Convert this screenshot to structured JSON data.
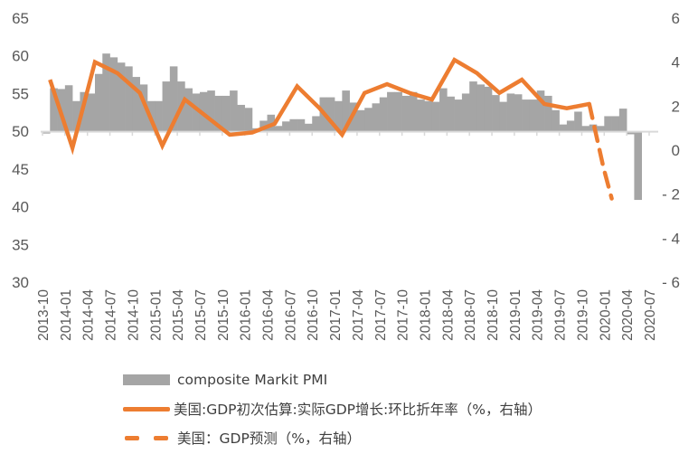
{
  "chart_data": {
    "type": "bar+line",
    "title": "",
    "xlabel": "",
    "ylabel_left": "composite Markit PMI",
    "ylabel_right": "%",
    "left_axis": {
      "min": 30,
      "max": 65,
      "ticks": [
        "65",
        "60",
        "55",
        "50",
        "45",
        "40",
        "35",
        "30"
      ],
      "crosses_at": 50
    },
    "right_axis": {
      "min": -6,
      "max": 6,
      "ticks": [
        "6",
        "4",
        "2",
        "0",
        "-2",
        "-4",
        "-6"
      ]
    },
    "x_tick_labels": [
      "2013-10",
      "2014-01",
      "2014-04",
      "2014-07",
      "2014-10",
      "2015-01",
      "2015-04",
      "2015-07",
      "2015-10",
      "2016-01",
      "2016-04",
      "2016-07",
      "2016-10",
      "2017-01",
      "2017-04",
      "2017-07",
      "2017-10",
      "2018-01",
      "2018-04",
      "2018-07",
      "2018-10",
      "2019-01",
      "2019-04",
      "2019-07",
      "2019-10",
      "2020-01",
      "2020-04",
      "2020-07"
    ],
    "grid": false,
    "legend_position": "bottom",
    "series": [
      {
        "name": "composite Markit PMI",
        "type": "bar",
        "axis": "left",
        "color": "#a5a5a5",
        "start_month": "2013-10",
        "values": [
          49.7,
          55.7,
          55.6,
          56.1,
          54.0,
          55.2,
          55.0,
          57.6,
          60.3,
          59.8,
          59.1,
          58.6,
          57.2,
          56.2,
          54.0,
          54.0,
          56.6,
          58.6,
          56.6,
          55.7,
          55.0,
          55.2,
          55.4,
          54.7,
          54.7,
          55.4,
          53.5,
          53.1,
          50.4,
          51.4,
          52.2,
          50.7,
          51.3,
          51.6,
          51.6,
          51.0,
          52.0,
          54.5,
          54.5,
          54.0,
          55.4,
          53.8,
          52.8,
          53.1,
          53.7,
          54.5,
          55.2,
          55.2,
          54.7,
          55.2,
          54.2,
          54.0,
          53.9,
          55.7,
          54.6,
          54.2,
          55.0,
          56.6,
          56.2,
          55.9,
          54.8,
          53.9,
          55.0,
          54.9,
          54.2,
          54.2,
          55.4,
          54.7,
          52.8,
          50.9,
          51.4,
          52.6,
          50.7,
          50.9,
          50.7,
          52.0,
          52.0,
          53.0,
          49.6,
          40.9
        ]
      },
      {
        "name": "美国:GDP初次估算:实际GDP增长:环比折年率（%，右轴）",
        "type": "line",
        "axis": "right",
        "color": "#ed7d31",
        "x": [
          "2013-Q4",
          "2014-Q1",
          "2014-Q2",
          "2014-Q3",
          "2014-Q4",
          "2015-Q1",
          "2015-Q2",
          "2015-Q3",
          "2015-Q4",
          "2016-Q1",
          "2016-Q2",
          "2016-Q3",
          "2016-Q4",
          "2017-Q1",
          "2017-Q2",
          "2017-Q3",
          "2017-Q4",
          "2018-Q1",
          "2018-Q2",
          "2018-Q3",
          "2018-Q4",
          "2019-Q1",
          "2019-Q2",
          "2019-Q3",
          "2019-Q4"
        ],
        "values": [
          3.2,
          0.1,
          4.0,
          3.5,
          2.6,
          0.2,
          2.3,
          1.5,
          0.7,
          0.8,
          1.2,
          2.9,
          1.9,
          0.7,
          2.6,
          3.0,
          2.6,
          2.3,
          4.1,
          3.5,
          2.6,
          3.2,
          2.1,
          1.9,
          2.1
        ]
      },
      {
        "name": "美国：GDP预测（%，右轴）",
        "type": "line-dashed",
        "axis": "right",
        "color": "#ed7d31",
        "x": [
          "2019-Q4",
          "2020-Q1",
          "2020-Q2"
        ],
        "values": [
          2.1,
          -0.8,
          -2.2
        ]
      }
    ]
  },
  "legend": {
    "items": [
      {
        "label": "composite Markit PMI"
      },
      {
        "label": "美国:GDP初次估算:实际GDP增长:环比折年率（%，右轴）"
      },
      {
        "label": "美国：GDP预测（%，右轴）"
      }
    ]
  }
}
